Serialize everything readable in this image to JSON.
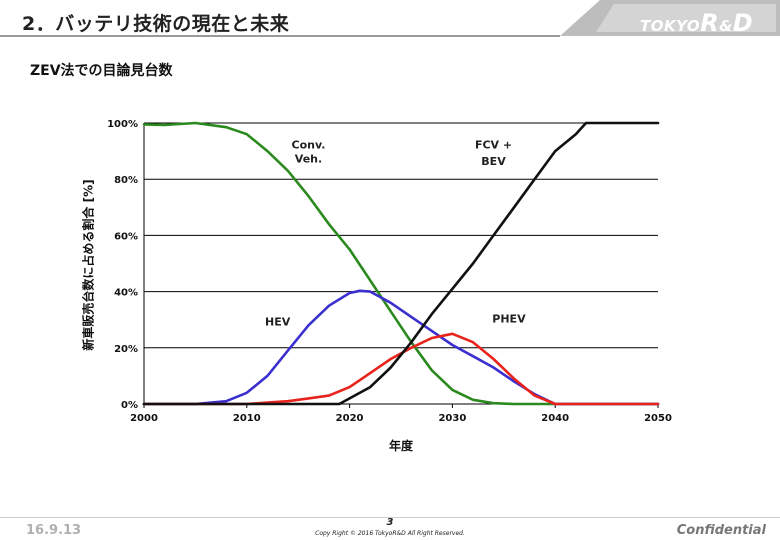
{
  "header": {
    "title": "2．バッテリ技術の現在と未来",
    "logo_part1": "TOKYO",
    "logo_part2": "R",
    "logo_part3": "&",
    "logo_part4": "D"
  },
  "subtitle": "ZEV法での目論見台数",
  "chart_data": {
    "type": "line",
    "xlabel": "年度",
    "ylabel": "新車販売台数に占める割合 [%]",
    "xlim": [
      2000,
      2050
    ],
    "ylim": [
      0,
      100
    ],
    "x_ticks": [
      "2000",
      "2010",
      "2020",
      "2030",
      "2040",
      "2050"
    ],
    "y_ticks": [
      "0%",
      "20%",
      "40%",
      "60%",
      "80%",
      "100%"
    ],
    "grid": "horizontal",
    "series": [
      {
        "name": "Conv. Veh.",
        "color": "#2a8a1e",
        "points": [
          [
            2000,
            99.5
          ],
          [
            2002,
            99.3
          ],
          [
            2005,
            100
          ],
          [
            2008,
            98.5
          ],
          [
            2010,
            96
          ],
          [
            2012,
            90
          ],
          [
            2014,
            83
          ],
          [
            2016,
            74
          ],
          [
            2018,
            64
          ],
          [
            2020,
            55
          ],
          [
            2022,
            44
          ],
          [
            2024,
            33
          ],
          [
            2026,
            22
          ],
          [
            2028,
            12
          ],
          [
            2030,
            5
          ],
          [
            2032,
            1.5
          ],
          [
            2034,
            0.3
          ],
          [
            2036,
            0
          ],
          [
            2050,
            0
          ]
        ]
      },
      {
        "name": "HEV",
        "color": "#3c2fd0",
        "points": [
          [
            2000,
            0
          ],
          [
            2005,
            0
          ],
          [
            2008,
            1
          ],
          [
            2010,
            4
          ],
          [
            2012,
            10
          ],
          [
            2014,
            19
          ],
          [
            2016,
            28
          ],
          [
            2018,
            35
          ],
          [
            2020,
            39.5
          ],
          [
            2021,
            40.3
          ],
          [
            2022,
            40
          ],
          [
            2024,
            36
          ],
          [
            2026,
            31
          ],
          [
            2028,
            26
          ],
          [
            2030,
            21
          ],
          [
            2032,
            17
          ],
          [
            2034,
            13
          ],
          [
            2036,
            8
          ],
          [
            2038,
            3.5
          ],
          [
            2040,
            0
          ],
          [
            2050,
            0
          ]
        ]
      },
      {
        "name": "PHEV",
        "color": "#e8231b",
        "points": [
          [
            2000,
            0
          ],
          [
            2010,
            0
          ],
          [
            2012,
            0.5
          ],
          [
            2014,
            1
          ],
          [
            2016,
            2
          ],
          [
            2018,
            3
          ],
          [
            2020,
            6
          ],
          [
            2022,
            11
          ],
          [
            2024,
            16
          ],
          [
            2026,
            20
          ],
          [
            2028,
            23.5
          ],
          [
            2030,
            25
          ],
          [
            2032,
            22
          ],
          [
            2034,
            16
          ],
          [
            2036,
            9
          ],
          [
            2038,
            3
          ],
          [
            2040,
            0
          ],
          [
            2050,
            0
          ]
        ]
      },
      {
        "name": "FCV + BEV",
        "color": "#111111",
        "points": [
          [
            2000,
            0
          ],
          [
            2019,
            0
          ],
          [
            2020,
            2
          ],
          [
            2022,
            6
          ],
          [
            2024,
            13
          ],
          [
            2026,
            22
          ],
          [
            2028,
            32
          ],
          [
            2030,
            41
          ],
          [
            2032,
            50
          ],
          [
            2034,
            60
          ],
          [
            2036,
            70
          ],
          [
            2038,
            80
          ],
          [
            2040,
            90
          ],
          [
            2042,
            96
          ],
          [
            2043,
            100
          ],
          [
            2050,
            100
          ]
        ]
      }
    ],
    "annotations": [
      {
        "text": "Conv.",
        "x": 2016,
        "y": 91
      },
      {
        "text": "Veh.",
        "x": 2016,
        "y": 86
      },
      {
        "text": "HEV",
        "x": 2013,
        "y": 28
      },
      {
        "text": "PHEV",
        "x": 2035.5,
        "y": 29
      },
      {
        "text": "FCV +",
        "x": 2034,
        "y": 91
      },
      {
        "text": "BEV",
        "x": 2034,
        "y": 85
      }
    ]
  },
  "footer": {
    "date": "16.9.13",
    "page": "3",
    "copyright": "Copy Right © 2016  TokyoR&D  All Right Reserved.",
    "confidential": "Confidential"
  }
}
